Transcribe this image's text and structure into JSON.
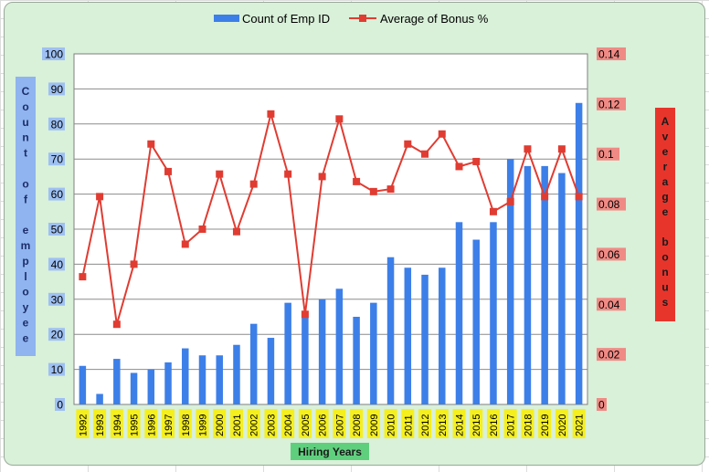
{
  "chart_data": {
    "type": "bar+line",
    "categories": [
      "1992",
      "1993",
      "1994",
      "1995",
      "1996",
      "1997",
      "1998",
      "1999",
      "2000",
      "2001",
      "2002",
      "2003",
      "2004",
      "2005",
      "2006",
      "2007",
      "2008",
      "2009",
      "2010",
      "2011",
      "2012",
      "2013",
      "2014",
      "2015",
      "2016",
      "2017",
      "2018",
      "2019",
      "2020",
      "2021"
    ],
    "series": [
      {
        "name": "Count of  Emp ID",
        "type": "bar",
        "axis": "left",
        "color": "#3d7fe8",
        "values": [
          11,
          3,
          13,
          9,
          10,
          12,
          16,
          14,
          14,
          17,
          23,
          19,
          29,
          26,
          30,
          33,
          25,
          29,
          42,
          39,
          37,
          39,
          52,
          47,
          52,
          70,
          68,
          68,
          66,
          86
        ]
      },
      {
        "name": "Average of Bonus %",
        "type": "line",
        "axis": "right",
        "color": "#e03c32",
        "values": [
          0.051,
          0.083,
          0.032,
          0.056,
          0.104,
          0.093,
          0.064,
          0.07,
          0.092,
          0.069,
          0.088,
          0.116,
          0.092,
          0.036,
          0.091,
          0.114,
          0.089,
          0.085,
          0.086,
          0.104,
          0.1,
          0.108,
          0.095,
          0.097,
          0.077,
          0.081,
          0.102,
          0.083,
          0.102,
          0.083
        ]
      }
    ],
    "yleft": {
      "ylim": [
        0,
        100
      ],
      "ticks": [
        "0",
        "10",
        "20",
        "30",
        "40",
        "50",
        "60",
        "70",
        "80",
        "90",
        "100"
      ]
    },
    "yright": {
      "ylim": [
        0,
        0.14
      ],
      "ticks": [
        "0",
        "0.02",
        "0.04",
        "0.06",
        "0.08",
        "0.1",
        "0.12",
        "0.14"
      ]
    },
    "xlabel": "Hiring Years",
    "ylabel_left": "Count of employee",
    "ylabel_right": "Average bonus",
    "legend_position": "top-center",
    "grid": true
  }
}
